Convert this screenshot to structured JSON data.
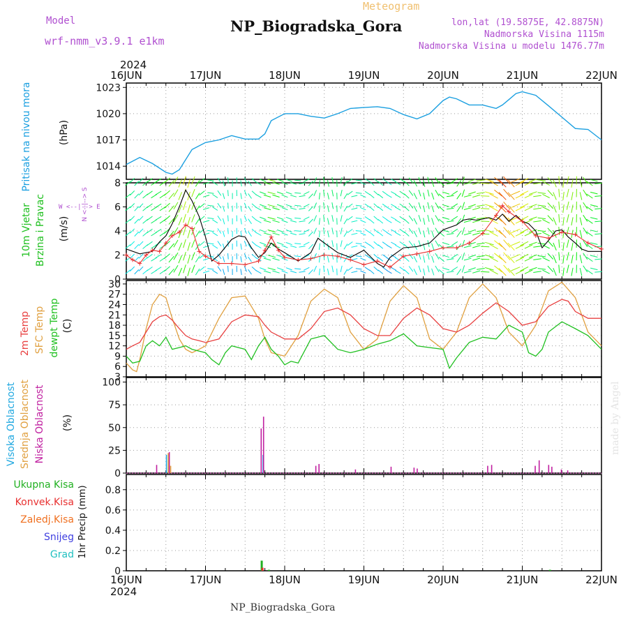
{
  "header": {
    "model_label": "Model",
    "model_name": "wrf-nmm_v3.9.1 e1km",
    "app_title": "Meteogram",
    "station_title": "NP_Biogradska_Gora",
    "lonlat": "lon,lat (19.5875E, 42.8875N)",
    "elevation": "Nadmorska Visina 1115m",
    "model_elevation": "Nadmorska Visina u modelu 1476.77m"
  },
  "footer": {
    "station": "NP_Biogradska_Gora",
    "year": "2024",
    "watermark": "made by Angel"
  },
  "time_axis": {
    "year_top": "2024",
    "ticks": [
      "16JUN",
      "17JUN",
      "18JUN",
      "19JUN",
      "20JUN",
      "21JUN",
      "22JUN"
    ],
    "range_days": [
      0,
      6
    ]
  },
  "colors": {
    "pressure": "#1a9fe0",
    "wind_max": "#000000",
    "wind_mean": "#e83030",
    "temp_2m": "#e84040",
    "temp_sfc": "#e0a040",
    "temp_dew": "#20c020",
    "cloud_high": "#20a8e0",
    "cloud_mid": "#e0a040",
    "cloud_low": "#c020a0",
    "precip_total": "#20b020",
    "precip_conv": "#e83030",
    "precip_frz": "#f07020",
    "precip_snow": "#4040e0",
    "precip_hail": "#20c0c0",
    "label_purple": "#b050d0"
  },
  "chart_data": [
    {
      "type": "line",
      "panel": "pressure",
      "ylabel_lines": [
        "Pritisak na nivou mora",
        "(hPa)"
      ],
      "yticks": [
        1014,
        1017,
        1020,
        1023
      ],
      "ylim": [
        1012.5,
        1023.5
      ],
      "grid": true,
      "series": [
        {
          "name": "Pritisak na nivou mora",
          "x": [
            0,
            0.17,
            0.33,
            0.5,
            0.58,
            0.67,
            0.83,
            1.0,
            1.17,
            1.33,
            1.5,
            1.67,
            1.75,
            1.83,
            2.0,
            2.17,
            2.33,
            2.5,
            2.67,
            2.83,
            3.0,
            3.17,
            3.33,
            3.5,
            3.67,
            3.83,
            4.0,
            4.08,
            4.17,
            4.33,
            4.5,
            4.67,
            4.75,
            4.83,
            4.92,
            5.0,
            5.17,
            5.33,
            5.5,
            5.67,
            5.83,
            6.0
          ],
          "values": [
            1014.2,
            1015.0,
            1014.3,
            1013.3,
            1013.1,
            1013.6,
            1015.9,
            1016.7,
            1017.0,
            1017.5,
            1017.1,
            1017.1,
            1017.7,
            1019.2,
            1020.0,
            1020.0,
            1019.7,
            1019.5,
            1020.0,
            1020.6,
            1020.7,
            1020.8,
            1020.6,
            1019.9,
            1019.4,
            1020.0,
            1021.5,
            1021.9,
            1021.7,
            1021.0,
            1021.0,
            1020.6,
            1021.0,
            1021.6,
            1022.3,
            1022.5,
            1022.1,
            1020.9,
            1019.6,
            1018.3,
            1018.2,
            1017.0
          ]
        }
      ]
    },
    {
      "type": "line",
      "panel": "wind",
      "ylabel_lines": [
        "10m Vjetar",
        "Brzina i Pravac",
        "(m/s)"
      ],
      "compass": "W <--|--> E",
      "compass_vertical": "N <--|--> S",
      "yticks": [
        0,
        2,
        4,
        6,
        8
      ],
      "ylim": [
        0,
        8
      ],
      "grid": true,
      "series": [
        {
          "name": "max",
          "x": [
            0,
            0.17,
            0.33,
            0.42,
            0.5,
            0.58,
            0.67,
            0.75,
            0.83,
            0.92,
            1.0,
            1.08,
            1.17,
            1.33,
            1.42,
            1.5,
            1.58,
            1.67,
            1.75,
            1.83,
            1.92,
            2.0,
            2.17,
            2.33,
            2.42,
            2.5,
            2.67,
            2.83,
            3.0,
            3.17,
            3.25,
            3.33,
            3.5,
            3.67,
            3.83,
            4.0,
            4.17,
            4.25,
            4.33,
            4.42,
            4.5,
            4.58,
            4.67,
            4.75,
            4.83,
            4.92,
            5.0,
            5.08,
            5.17,
            5.25,
            5.33,
            5.42,
            5.5,
            5.58,
            5.67,
            5.75,
            5.83,
            6.0
          ],
          "values": [
            2.5,
            2.1,
            2.3,
            3.1,
            3.6,
            4.6,
            6.0,
            7.4,
            6.5,
            5.2,
            3.5,
            1.5,
            2.0,
            3.3,
            3.6,
            3.5,
            2.6,
            1.8,
            2.2,
            3.0,
            2.5,
            2.2,
            1.5,
            2.2,
            3.4,
            3.0,
            2.2,
            1.8,
            2.4,
            1.3,
            1.0,
            1.8,
            2.6,
            2.7,
            3.0,
            4.1,
            4.5,
            4.9,
            5.0,
            4.9,
            5.0,
            5.1,
            4.9,
            5.4,
            4.8,
            5.3,
            4.8,
            4.6,
            4.0,
            2.6,
            3.2,
            4.0,
            4.1,
            3.5,
            3.0,
            2.5,
            2.3,
            2.3
          ]
        },
        {
          "name": "mean",
          "x": [
            0,
            0.08,
            0.17,
            0.25,
            0.33,
            0.42,
            0.5,
            0.58,
            0.67,
            0.75,
            0.83,
            0.92,
            1.0,
            1.17,
            1.33,
            1.5,
            1.67,
            1.75,
            1.83,
            1.92,
            2.0,
            2.17,
            2.33,
            2.5,
            2.67,
            2.83,
            3.0,
            3.17,
            3.33,
            3.5,
            3.67,
            3.83,
            4.0,
            4.17,
            4.33,
            4.5,
            4.67,
            4.75,
            4.83,
            5.0,
            5.17,
            5.33,
            5.5,
            5.67,
            5.83,
            6.0
          ],
          "values": [
            2.0,
            1.6,
            1.3,
            2.0,
            2.4,
            2.3,
            3.0,
            3.6,
            3.9,
            4.5,
            4.2,
            2.3,
            1.9,
            1.3,
            1.3,
            1.2,
            1.5,
            2.4,
            3.5,
            2.4,
            1.8,
            1.6,
            1.7,
            2.0,
            1.9,
            1.6,
            1.2,
            1.5,
            1.0,
            1.9,
            2.1,
            2.3,
            2.6,
            2.6,
            3.0,
            3.8,
            5.3,
            6.1,
            5.6,
            4.8,
            3.6,
            3.4,
            3.9,
            3.7,
            3.0,
            2.5
          ]
        }
      ]
    },
    {
      "type": "line",
      "panel": "temperature",
      "ylabel_lines": [
        "2m Temp",
        "SFC Temp",
        "dewpt Temp",
        "(C)"
      ],
      "yticks": [
        3,
        6,
        9,
        12,
        15,
        18,
        21,
        24,
        27,
        30
      ],
      "ylim": [
        3,
        31
      ],
      "grid": true,
      "series": [
        {
          "name": "2m Temp",
          "x": [
            0,
            0.08,
            0.17,
            0.25,
            0.33,
            0.42,
            0.5,
            0.58,
            0.67,
            0.75,
            0.83,
            0.92,
            1.0,
            1.17,
            1.33,
            1.5,
            1.67,
            1.75,
            1.83,
            2.0,
            2.17,
            2.33,
            2.5,
            2.67,
            2.83,
            3.0,
            3.17,
            3.33,
            3.5,
            3.67,
            3.83,
            4.0,
            4.17,
            4.33,
            4.5,
            4.67,
            4.83,
            5.0,
            5.17,
            5.33,
            5.5,
            5.58,
            5.67,
            5.83,
            6.0
          ],
          "values": [
            11,
            12,
            13,
            16,
            19,
            20.5,
            21,
            19.5,
            17,
            15,
            14,
            13.5,
            13,
            14,
            19,
            21,
            20.5,
            18,
            16,
            14,
            14,
            17,
            22,
            23,
            21,
            17,
            15,
            15,
            20,
            23,
            21,
            17,
            16,
            18,
            21.5,
            24.5,
            22,
            18,
            19,
            23.5,
            25.5,
            25,
            22,
            20,
            20
          ]
        },
        {
          "name": "SFC Temp",
          "x": [
            0,
            0.08,
            0.13,
            0.17,
            0.25,
            0.33,
            0.42,
            0.5,
            0.58,
            0.67,
            0.75,
            0.83,
            0.92,
            1.0,
            1.17,
            1.33,
            1.5,
            1.67,
            1.75,
            1.83,
            2.0,
            2.17,
            2.33,
            2.5,
            2.67,
            2.83,
            3.0,
            3.17,
            3.33,
            3.5,
            3.67,
            3.83,
            4.0,
            4.17,
            4.33,
            4.5,
            4.67,
            4.83,
            5.0,
            5.17,
            5.33,
            5.5,
            5.67,
            5.83,
            6.0
          ],
          "values": [
            7,
            5,
            4.5,
            8,
            17,
            24,
            27,
            26,
            20,
            14,
            11,
            10,
            11,
            12,
            20,
            26,
            26.5,
            20,
            14,
            10,
            9,
            15,
            25,
            28.5,
            26,
            16,
            11,
            14,
            25,
            29.5,
            26,
            14,
            11,
            16,
            26,
            30,
            26,
            16,
            12,
            18,
            28,
            30.5,
            26,
            16,
            12
          ]
        },
        {
          "name": "dewpt Temp",
          "x": [
            0,
            0.08,
            0.17,
            0.25,
            0.33,
            0.42,
            0.5,
            0.58,
            0.67,
            0.75,
            0.83,
            1.0,
            1.08,
            1.17,
            1.25,
            1.33,
            1.5,
            1.58,
            1.67,
            1.75,
            1.83,
            1.92,
            2.0,
            2.08,
            2.17,
            2.33,
            2.5,
            2.67,
            2.83,
            3.0,
            3.17,
            3.33,
            3.5,
            3.67,
            3.83,
            4.0,
            4.08,
            4.17,
            4.33,
            4.5,
            4.67,
            4.83,
            5.0,
            5.08,
            5.17,
            5.25,
            5.33,
            5.5,
            5.67,
            5.83,
            6.0
          ],
          "values": [
            9,
            7,
            7.5,
            12,
            13.5,
            12,
            14.5,
            11,
            11.5,
            12,
            11,
            10,
            8,
            6.5,
            10,
            12,
            11,
            8,
            12,
            14.5,
            11,
            9,
            6.5,
            7.5,
            7,
            14,
            15,
            11,
            10,
            11,
            12.5,
            13.5,
            15.5,
            12,
            11.5,
            11,
            5.5,
            8.5,
            13,
            14.5,
            14,
            18,
            16,
            10,
            9,
            11,
            16,
            19,
            17,
            15,
            11
          ]
        }
      ]
    },
    {
      "type": "bar",
      "panel": "clouds",
      "ylabel_lines": [
        "Visoka Oblacnost",
        "Srednja Oblacnost",
        "Niska Oblacnost",
        "(%)"
      ],
      "yticks": [
        0,
        25,
        50,
        75,
        100
      ],
      "ylim": [
        0,
        105
      ],
      "grid": true,
      "series": [
        {
          "name": "Visoka Oblacnost",
          "x": [
            0.52,
            1.74
          ],
          "values": [
            20,
            20
          ]
        },
        {
          "name": "Srednja Oblacnost",
          "x": [
            0.53,
            0.56
          ],
          "values": [
            22,
            8
          ]
        },
        {
          "name": "Niska Oblacnost",
          "x": [
            0.37,
            0.53,
            1.69,
            1.72,
            2.38,
            2.42,
            2.88,
            3.33,
            3.62,
            3.66,
            4.55,
            4.6,
            5.15,
            5.2,
            5.32,
            5.36,
            5.48,
            5.56
          ],
          "values": [
            9,
            23,
            49,
            62,
            8,
            10,
            4,
            7,
            6,
            5,
            8,
            9,
            8,
            14,
            9,
            7,
            4,
            3
          ]
        }
      ]
    },
    {
      "type": "bar",
      "panel": "precipitation",
      "ylabel_lines": [
        "Ukupna Kisa",
        "Konvek.Kisa",
        "Zaledj.Kisa",
        "Snijeg",
        "Grad",
        "1hr Precip (mm)"
      ],
      "yticks": [
        0,
        0.2,
        0.4,
        0.6,
        0.8
      ],
      "ylim": [
        0,
        0.95
      ],
      "grid": true,
      "series": [
        {
          "name": "Ukupna Kisa",
          "x": [
            1.71,
            1.8,
            5.35
          ],
          "values": [
            0.1,
            0.01,
            0.01
          ]
        },
        {
          "name": "Konvek.Kisa",
          "x": [
            1.72
          ],
          "values": [
            0.03
          ]
        }
      ]
    }
  ]
}
